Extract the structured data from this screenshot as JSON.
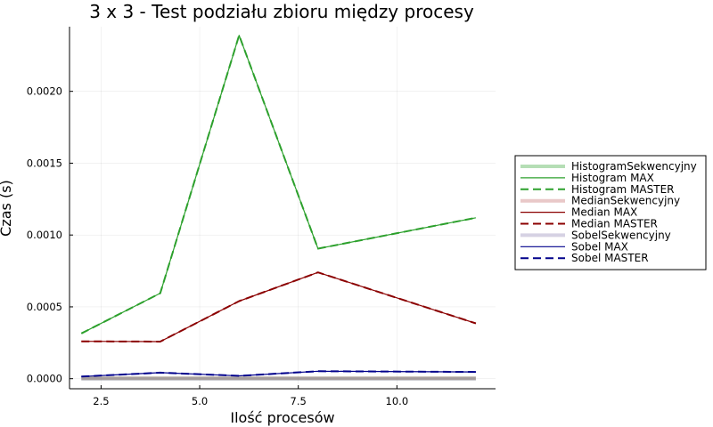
{
  "chart_data": {
    "type": "line",
    "title": "3 x 3 - Test podziału zbioru między procesy",
    "xlabel": "Ilość procesów",
    "ylabel": "Czas (s)",
    "xlim": [
      1.7,
      12.5
    ],
    "ylim": [
      -7e-05,
      0.00245
    ],
    "x_ticks": [
      2.5,
      5.0,
      7.5,
      10.0
    ],
    "x_tick_labels": [
      "2.5",
      "5.0",
      "7.5",
      "10.0"
    ],
    "y_ticks": [
      0.0,
      0.0005,
      0.001,
      0.0015,
      0.002
    ],
    "y_tick_labels": [
      "0.0000",
      "0.0005",
      "0.0010",
      "0.0015",
      "0.0020"
    ],
    "grid": true,
    "legend_position": "outside-right",
    "x": [
      2,
      4,
      6,
      8,
      12
    ],
    "series": [
      {
        "name": "HistogramSekwencyjny",
        "values": [
          2e-06,
          2e-06,
          2e-06,
          2e-06,
          2e-06
        ],
        "color": "#2ca02c",
        "style": "thick-faded"
      },
      {
        "name": "Histogram MAX",
        "values": [
          0.000315,
          0.000595,
          0.00239,
          0.000905,
          0.00112
        ],
        "color": "#2ca02c",
        "style": "thin"
      },
      {
        "name": "Histogram MASTER",
        "values": [
          0.000315,
          0.000595,
          0.00239,
          0.000905,
          0.00112
        ],
        "color": "#2ca02c",
        "style": "dashed"
      },
      {
        "name": "MedianSekwencyjny",
        "values": [
          3e-06,
          3e-06,
          3e-06,
          3e-06,
          3e-06
        ],
        "color": "#c06060",
        "style": "thick-faded"
      },
      {
        "name": "Median MAX",
        "values": [
          0.00026,
          0.000258,
          0.00054,
          0.00074,
          0.000385
        ],
        "color": "#8b0000",
        "style": "thin"
      },
      {
        "name": "Median MASTER",
        "values": [
          0.00026,
          0.000258,
          0.00054,
          0.00074,
          0.000385
        ],
        "color": "#8b0000",
        "style": "dashed"
      },
      {
        "name": "SobelSekwencyjny",
        "values": [
          0.0,
          0.0,
          0.0,
          0.0,
          0.0
        ],
        "color": "#8a7fb0",
        "style": "thick-faded"
      },
      {
        "name": "Sobel MAX",
        "values": [
          1.5e-05,
          4.2e-05,
          2e-05,
          5.2e-05,
          4.7e-05
        ],
        "color": "#00008b",
        "style": "thin"
      },
      {
        "name": "Sobel MASTER",
        "values": [
          1.5e-05,
          4.2e-05,
          2e-05,
          5.2e-05,
          4.7e-05
        ],
        "color": "#00008b",
        "style": "dashed"
      }
    ]
  }
}
